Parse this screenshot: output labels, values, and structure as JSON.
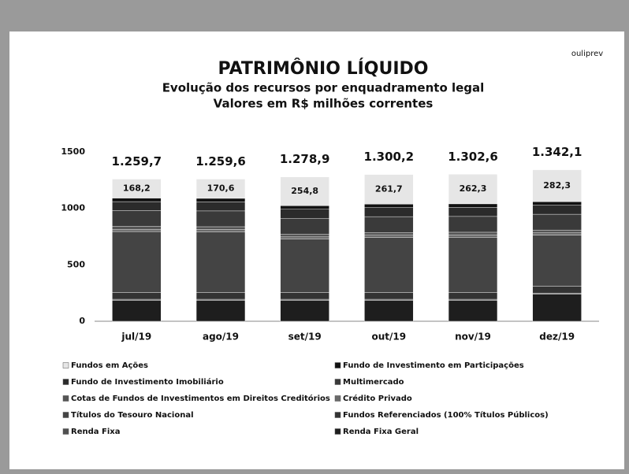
{
  "logo": "ouliprev",
  "chart_data": {
    "type": "stacked_bar",
    "title": "PATRIMÔNIO LÍQUIDO",
    "subtitle": [
      "Evolução dos recursos por enquadramento legal",
      "Valores em R$ milhões correntes"
    ],
    "categories": [
      "jul/19",
      "ago/19",
      "set/19",
      "out/19",
      "nov/19",
      "dez/19"
    ],
    "ylim": [
      0,
      1500
    ],
    "yticks": [
      0,
      500,
      1000,
      1500
    ],
    "grid": false,
    "totals": [
      {
        "value": 1259.7,
        "label": "1.259,7"
      },
      {
        "value": 1259.6,
        "label": "1.259,6"
      },
      {
        "value": 1278.9,
        "label": "1.278,9"
      },
      {
        "value": 1300.2,
        "label": "1.300,2"
      },
      {
        "value": 1302.6,
        "label": "1.302,6"
      },
      {
        "value": 1342.1,
        "label": "1.342,1"
      }
    ],
    "series": [
      {
        "name": "Fundos em Ações",
        "color": "#e6e6e6",
        "values": [
          168.2,
          170.6,
          254.8,
          261.7,
          262.3,
          282.3
        ],
        "value_labels": [
          "168,2",
          "170,6",
          "254,8",
          "261,7",
          "262,3",
          "282,3"
        ]
      },
      {
        "name": "Fundo de Investimento  em Participações",
        "color": "#111111",
        "values": [
          31.5,
          31.5,
          31.5,
          31.5,
          31.5,
          31.5
        ]
      },
      {
        "name": "Fundo de Investimento Imobiliário",
        "color": "#2b2b2b",
        "values": [
          80,
          80,
          80,
          80,
          80,
          80
        ]
      },
      {
        "name": "Multimercado",
        "color": "#3a3a3a",
        "values": [
          140,
          140,
          140,
          140,
          140,
          140
        ]
      },
      {
        "name": "Cotas de Fundos de Investimentos em Direitos Creditórios",
        "color": "#555555",
        "values": [
          25,
          25,
          25,
          25,
          25,
          25
        ]
      },
      {
        "name": "Crédito Privado",
        "color": "#6a6a6a",
        "values": [
          20,
          20,
          20,
          20,
          20,
          20
        ]
      },
      {
        "name": "Títulos do Tesouro Nacional",
        "color": "#444444",
        "values": [
          540,
          537.5,
          472.6,
          487,
          488.8,
          453.3
        ]
      },
      {
        "name": "Fundos Referenciados (100% Títulos Públicos)",
        "color": "#333333",
        "values": [
          60,
          60,
          60,
          60,
          60,
          60
        ]
      },
      {
        "name": "Renda Fixa",
        "color": "#505050",
        "values": [
          10,
          10,
          10,
          10,
          10,
          10
        ]
      },
      {
        "name": "Renda Fixa Geral",
        "color": "#1e1e1e",
        "values": [
          185,
          185,
          185,
          185,
          185,
          240
        ]
      }
    ]
  }
}
